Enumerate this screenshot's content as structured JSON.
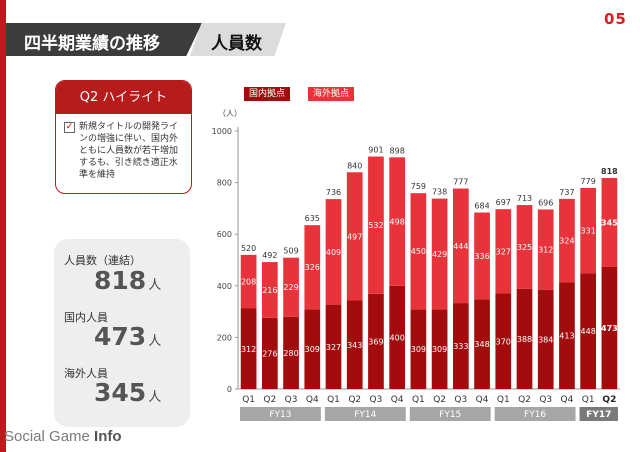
{
  "page_number": "05",
  "title": {
    "main": "四半期業績の推移",
    "sub": "人員数"
  },
  "highlight": {
    "header": "Q2 ハイライト",
    "text": "新規タイトルの開発ラインの増強に伴い、国内外ともに人員数が若干増加するも、引き続き適正水準を維持"
  },
  "stats": [
    {
      "label": "人員数（連結）",
      "value": "818",
      "unit": "人"
    },
    {
      "label": "国内人員",
      "value": "473",
      "unit": "人"
    },
    {
      "label": "海外人員",
      "value": "345",
      "unit": "人"
    }
  ],
  "watermark": {
    "part1": "Social Game ",
    "part2": "Info"
  },
  "colors": {
    "domestic": "#a30c0c",
    "overseas": "#e8333b",
    "fy_band": "#a6a6a6",
    "fy_band_current": "#7a7a7a"
  },
  "chart_data": {
    "type": "bar",
    "stacked": true,
    "ylabel": "（人）",
    "ylim": [
      0,
      1000
    ],
    "yticks": [
      0,
      200,
      400,
      600,
      800,
      1000
    ],
    "categories": [
      "Q1",
      "Q2",
      "Q3",
      "Q4",
      "Q1",
      "Q2",
      "Q3",
      "Q4",
      "Q1",
      "Q2",
      "Q3",
      "Q4",
      "Q1",
      "Q2",
      "Q3",
      "Q4",
      "Q1",
      "Q2"
    ],
    "fiscal_years": [
      {
        "label": "FY13",
        "count": 4
      },
      {
        "label": "FY14",
        "count": 4
      },
      {
        "label": "FY15",
        "count": 4
      },
      {
        "label": "FY16",
        "count": 4
      },
      {
        "label": "FY17",
        "count": 2
      }
    ],
    "series": [
      {
        "name": "国内拠点",
        "values": [
          312,
          276,
          280,
          309,
          327,
          343,
          369,
          400,
          309,
          309,
          333,
          348,
          370,
          388,
          384,
          413,
          448,
          473
        ]
      },
      {
        "name": "海外拠点",
        "values": [
          208,
          216,
          229,
          326,
          409,
          497,
          532,
          498,
          450,
          429,
          444,
          336,
          327,
          325,
          312,
          324,
          331,
          345
        ]
      }
    ],
    "totals": [
      520,
      492,
      509,
      635,
      736,
      840,
      901,
      898,
      759,
      738,
      777,
      684,
      697,
      713,
      696,
      737,
      779,
      818
    ]
  }
}
